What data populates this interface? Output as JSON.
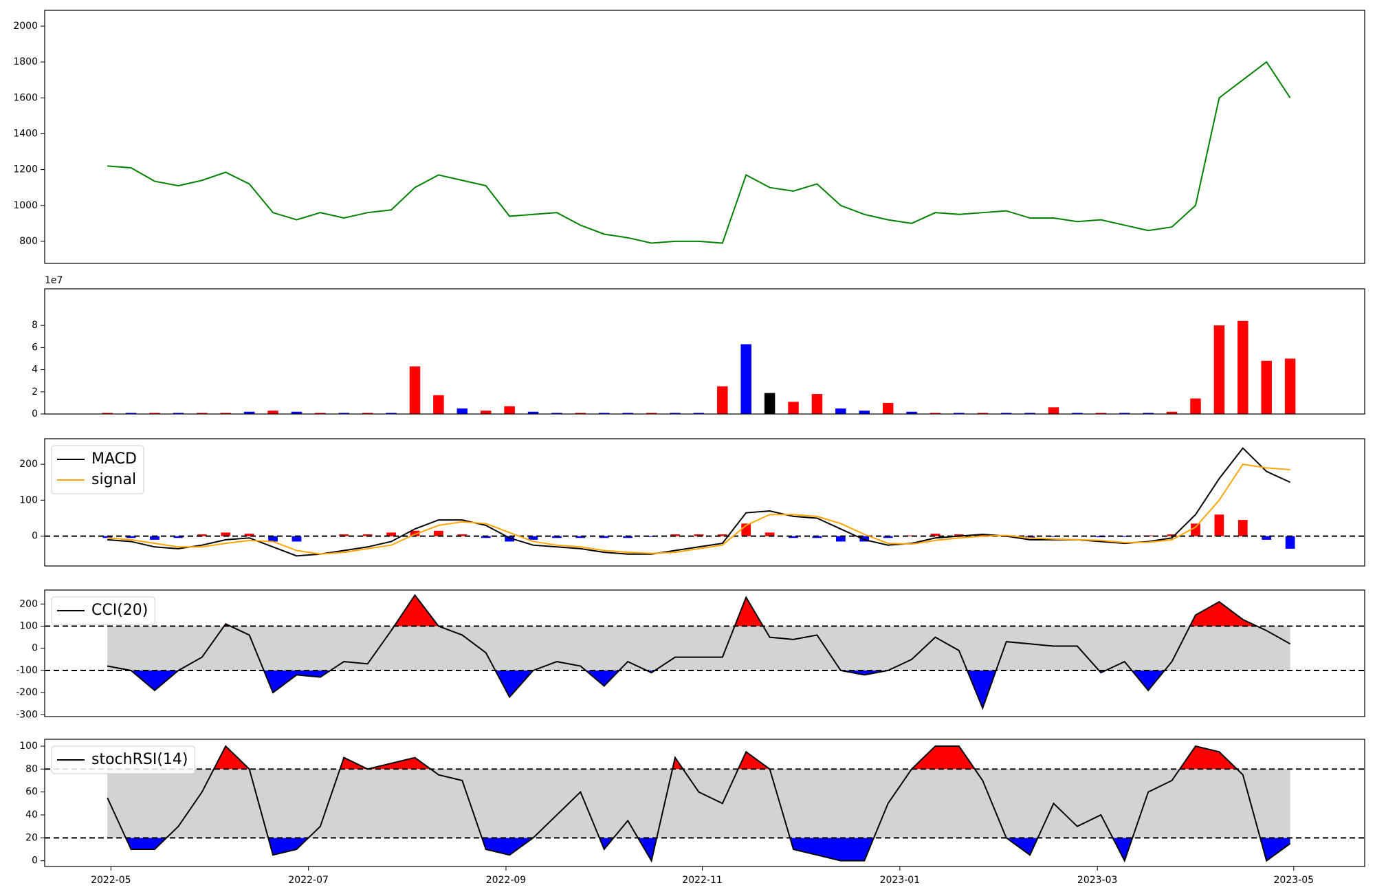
{
  "chart_data": [
    {
      "type": "line",
      "x": [
        2022.33,
        2022.35,
        2022.37,
        2022.39,
        2022.41,
        2022.43,
        2022.45,
        2022.47,
        2022.49,
        2022.51,
        2022.53,
        2022.55,
        2022.57,
        2022.59,
        2022.61,
        2022.63,
        2022.65,
        2022.67,
        2022.69,
        2022.71,
        2022.73,
        2022.75,
        2022.77,
        2022.79,
        2022.81,
        2022.83,
        2022.85,
        2022.87,
        2022.89,
        2022.91,
        2022.93,
        2022.95,
        2022.97,
        2022.99,
        2023.01,
        2023.03,
        2023.05,
        2023.07,
        2023.09,
        2023.11,
        2023.13,
        2023.15,
        2023.17,
        2023.19,
        2023.21,
        2023.23,
        2023.25,
        2023.27,
        2023.29,
        2023.31,
        2023.33
      ],
      "xlim": [
        2022.277,
        2023.393
      ],
      "ylim": [
        677,
        2088
      ],
      "yticks": [
        800,
        1000,
        1200,
        1400,
        1600,
        1800,
        2000
      ],
      "series": [
        {
          "color": "#008000",
          "values": [
            1220,
            1210,
            1135,
            1110,
            1140,
            1185,
            1120,
            960,
            920,
            960,
            930,
            960,
            975,
            1100,
            1170,
            1140,
            1110,
            940,
            950,
            960,
            890,
            840,
            820,
            790,
            800,
            800,
            790,
            1170,
            1100,
            1080,
            1120,
            1000,
            950,
            920,
            900,
            960,
            950,
            960,
            970,
            930,
            930,
            910,
            920,
            890,
            860,
            880,
            1000,
            1600,
            1700,
            1800,
            1600
          ]
        }
      ]
    },
    {
      "type": "bar",
      "offset_label": "1e7",
      "ylim": [
        0,
        11.3
      ],
      "yticks": [
        0,
        2,
        4,
        6,
        8
      ],
      "values": [
        0.1,
        0.1,
        0.1,
        0.1,
        0.1,
        0.1,
        0.2,
        0.3,
        0.2,
        0.1,
        0.1,
        0.1,
        0.1,
        4.3,
        1.7,
        0.5,
        0.3,
        0.7,
        0.2,
        0.1,
        0.1,
        0.1,
        0.1,
        0.1,
        0.1,
        0.1,
        2.5,
        6.3,
        1.9,
        1.1,
        1.8,
        0.5,
        0.3,
        1.0,
        0.2,
        0.1,
        0.1,
        0.1,
        0.1,
        0.1,
        0.6,
        0.1,
        0.1,
        0.1,
        0.1,
        0.2,
        1.4,
        8.0,
        8.4,
        4.8,
        5.0
      ],
      "colors": [
        "#ff0000",
        "#0000ff",
        "#ff0000",
        "#0000ff",
        "#ff0000",
        "#ff0000",
        "#0000ff",
        "#ff0000",
        "#0000ff",
        "#ff0000",
        "#0000ff",
        "#ff0000",
        "#0000ff",
        "#ff0000",
        "#ff0000",
        "#0000ff",
        "#ff0000",
        "#ff0000",
        "#0000ff",
        "#0000ff",
        "#ff0000",
        "#0000ff",
        "#0000ff",
        "#ff0000",
        "#0000ff",
        "#0000ff",
        "#ff0000",
        "#0000ff",
        "#000000",
        "#ff0000",
        "#ff0000",
        "#0000ff",
        "#0000ff",
        "#ff0000",
        "#0000ff",
        "#ff0000",
        "#0000ff",
        "#ff0000",
        "#0000ff",
        "#0000ff",
        "#ff0000",
        "#0000ff",
        "#ff0000",
        "#0000ff",
        "#0000ff",
        "#ff0000",
        "#ff0000",
        "#ff0000",
        "#ff0000",
        "#ff0000",
        "#ff0000"
      ]
    },
    {
      "type": "combo",
      "legend": "upper left",
      "hline": 0,
      "ylim": [
        -83,
        271
      ],
      "yticks": [
        0,
        100,
        200
      ],
      "series": [
        {
          "name": "MACD",
          "color": "#000000",
          "values": [
            -10,
            -15,
            -30,
            -35,
            -25,
            -10,
            -5,
            -30,
            -55,
            -50,
            -40,
            -30,
            -15,
            20,
            45,
            45,
            30,
            -5,
            -25,
            -30,
            -35,
            -45,
            -50,
            -50,
            -40,
            -30,
            -20,
            65,
            70,
            55,
            50,
            20,
            -10,
            -25,
            -20,
            -5,
            0,
            5,
            0,
            -10,
            -10,
            -10,
            -15,
            -20,
            -15,
            -5,
            60,
            160,
            245,
            180,
            150
          ]
        },
        {
          "name": "signal",
          "color": "#ffa500",
          "values": [
            -5,
            -10,
            -20,
            -30,
            -30,
            -20,
            -12,
            -15,
            -40,
            -50,
            -45,
            -35,
            -25,
            5,
            30,
            40,
            35,
            10,
            -15,
            -25,
            -30,
            -40,
            -45,
            -48,
            -45,
            -35,
            -25,
            30,
            60,
            60,
            55,
            35,
            5,
            -20,
            -22,
            -12,
            -5,
            0,
            2,
            -5,
            -8,
            -10,
            -12,
            -18,
            -17,
            -10,
            25,
            100,
            200,
            190,
            185
          ]
        }
      ],
      "histogram": {
        "up_color": "#ff0000",
        "down_color": "#0000ff",
        "values": [
          -5,
          -5,
          -10,
          -5,
          5,
          10,
          7,
          -15,
          -15,
          0,
          5,
          5,
          10,
          15,
          15,
          5,
          -5,
          -15,
          -10,
          -5,
          -5,
          -5,
          -5,
          -2,
          5,
          5,
          5,
          35,
          10,
          -5,
          -5,
          -15,
          -15,
          -5,
          2,
          7,
          5,
          5,
          -2,
          -5,
          -2,
          0,
          -3,
          -2,
          2,
          5,
          35,
          60,
          45,
          -10,
          -35
        ]
      }
    },
    {
      "type": "band",
      "legend": "upper left",
      "bounds": [
        -100,
        100
      ],
      "band_color": "#d3d3d3",
      "above_color": "#ff0000",
      "below_color": "#0000ff",
      "ylim": [
        -308,
        263
      ],
      "yticks": [
        -300,
        -200,
        -100,
        0,
        100,
        200
      ],
      "series": [
        {
          "name": "CCI(20)",
          "color": "#000000",
          "values": [
            -80,
            -100,
            -190,
            -100,
            -40,
            110,
            60,
            -200,
            -120,
            -130,
            -60,
            -70,
            80,
            240,
            100,
            60,
            -20,
            -220,
            -100,
            -60,
            -80,
            -170,
            -60,
            -110,
            -40,
            -40,
            -40,
            230,
            50,
            40,
            60,
            -100,
            -120,
            -100,
            -50,
            50,
            -10,
            -270,
            30,
            20,
            10,
            10,
            -110,
            -60,
            -190,
            -60,
            150,
            210,
            130,
            80,
            20
          ]
        }
      ]
    },
    {
      "type": "band",
      "legend": "upper left",
      "bounds": [
        20,
        80
      ],
      "band_color": "#d3d3d3",
      "above_color": "#ff0000",
      "below_color": "#0000ff",
      "ylim": [
        -5,
        106
      ],
      "yticks": [
        0,
        20,
        40,
        60,
        80,
        100
      ],
      "xticks": [
        {
          "value": 2022.333,
          "label": "2022-05"
        },
        {
          "value": 2022.5,
          "label": "2022-07"
        },
        {
          "value": 2022.667,
          "label": "2022-09"
        },
        {
          "value": 2022.833,
          "label": "2022-11"
        },
        {
          "value": 2023.0,
          "label": "2023-01"
        },
        {
          "value": 2023.167,
          "label": "2023-03"
        },
        {
          "value": 2023.333,
          "label": "2023-05"
        }
      ],
      "series": [
        {
          "name": "stochRSI(14)",
          "color": "#000000",
          "values": [
            55,
            10,
            10,
            30,
            60,
            100,
            80,
            5,
            10,
            30,
            90,
            80,
            85,
            90,
            75,
            70,
            10,
            5,
            20,
            40,
            60,
            10,
            35,
            0,
            90,
            60,
            50,
            95,
            80,
            10,
            5,
            0,
            0,
            50,
            80,
            100,
            100,
            70,
            20,
            5,
            50,
            30,
            40,
            0,
            60,
            70,
            100,
            95,
            75,
            0,
            15
          ]
        }
      ]
    }
  ]
}
